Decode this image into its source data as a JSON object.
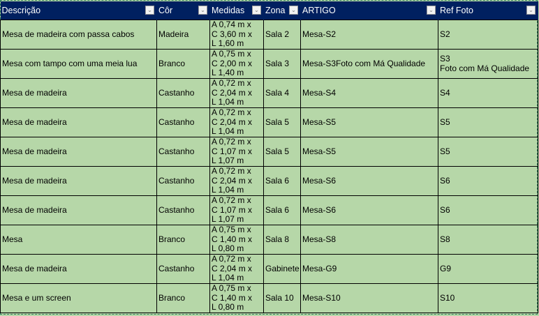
{
  "headers": [
    "Descrição",
    "Côr",
    "Medidas",
    "Zona",
    "ARTIGO",
    "Ref Foto"
  ],
  "rows": [
    [
      "Mesa de madeira com passa cabos",
      "Madeira",
      "A 0,74 m x\nC 3,60 m x\nL 1,60 m",
      "Sala 2",
      "Mesa-S2",
      "S2"
    ],
    [
      "Mesa com tampo com uma meia lua",
      "Branco",
      "A 0,75 m x\nC 2,00 m x\nL 1,40 m",
      "Sala 3",
      "Mesa-S3Foto com Má Qualidade",
      "S3\nFoto com Má Qualidade"
    ],
    [
      "Mesa de madeira",
      "Castanho",
      "A 0,72 m x\nC 2,04 m x\nL 1,04 m",
      "Sala 4",
      "Mesa-S4",
      "S4"
    ],
    [
      "Mesa de madeira",
      "Castanho",
      "A 0,72 m x\nC 2,04 m x\nL 1,04 m",
      "Sala 5",
      "Mesa-S5",
      "S5"
    ],
    [
      "Mesa de madeira",
      "Castanho",
      "A 0,72 m x\nC 1,07 m x\nL 1,07 m",
      "Sala 5",
      "Mesa-S5",
      "S5"
    ],
    [
      "Mesa de madeira",
      "Castanho",
      "A 0,72 m x\nC 2,04 m x\nL 1,04 m",
      "Sala 6",
      "Mesa-S6",
      "S6"
    ],
    [
      "Mesa de madeira",
      "Castanho",
      "A 0,72 m x\nC 1,07 m x\nL 1,07 m",
      "Sala 6",
      "Mesa-S6",
      "S6"
    ],
    [
      "Mesa",
      "Branco",
      "A 0,75 m x\nC 1,40 m x\nL 0,80 m",
      "Sala 8",
      "Mesa-S8",
      "S8"
    ],
    [
      "Mesa de madeira",
      "Castanho",
      "A 0,72 m x\nC 2,04 m x\nL 1,04 m",
      "Gabinete",
      "Mesa-G9",
      "G9"
    ],
    [
      "Mesa e um screen",
      "Branco",
      "A 0,75 m x\nC 1,40 m x\nL 0,80 m",
      "Sala 10",
      "Mesa-S10",
      "S10"
    ]
  ],
  "colors": {
    "header_bg": "#002060",
    "row_bg": "#b6d7a8"
  }
}
